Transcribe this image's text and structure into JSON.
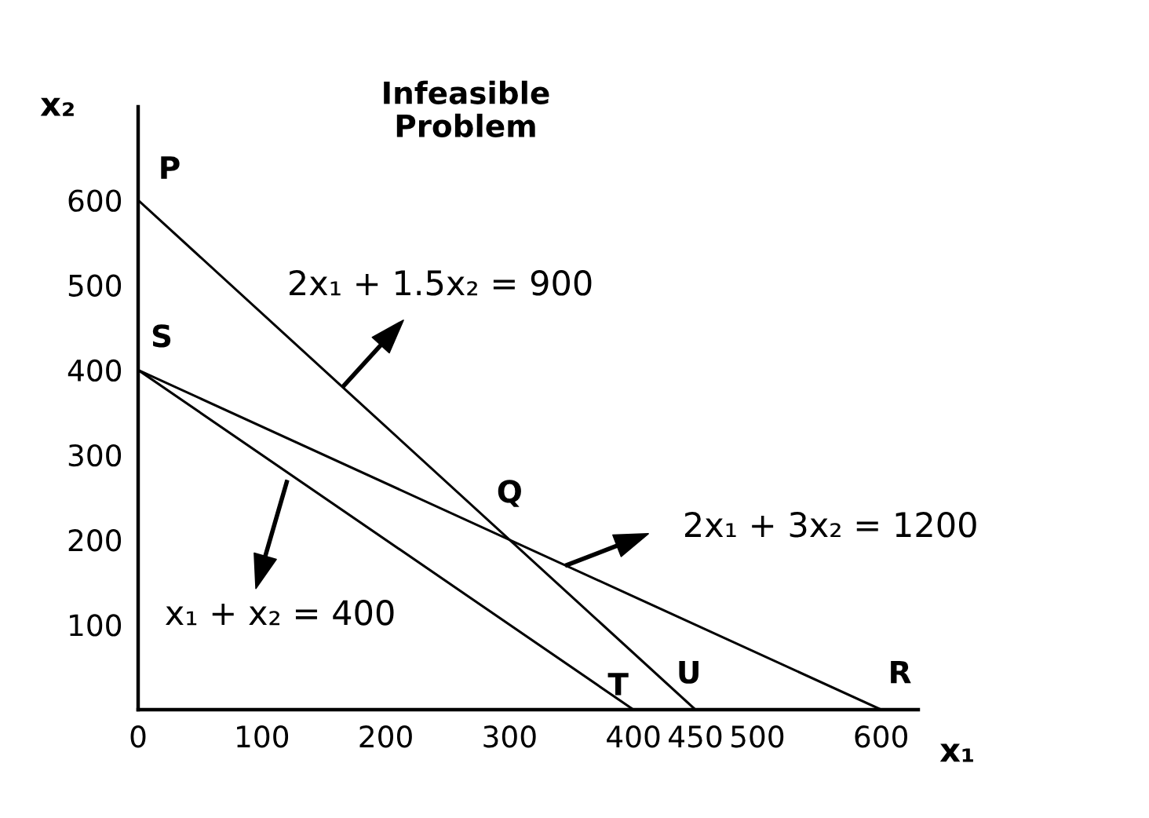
{
  "chart_data": {
    "type": "line",
    "title": "Infeasible\nProblem",
    "xlabel": "x₁",
    "ylabel": "x₂",
    "series": [
      {
        "x": [
          0,
          450
        ],
        "values": [
          600,
          0
        ],
        "color": "#000000"
      },
      {
        "x": [
          0,
          600
        ],
        "values": [
          400,
          0
        ],
        "color": "#000000"
      },
      {
        "x": [
          0,
          400
        ],
        "values": [
          400,
          0
        ],
        "color": "#000000"
      }
    ],
    "xlim": [
      0,
      630
    ],
    "ylim": [
      0,
      710
    ],
    "xticks": [
      0,
      100,
      200,
      300,
      400,
      450,
      500,
      600
    ],
    "yticks": [
      100,
      200,
      300,
      400,
      500,
      600
    ],
    "line_style": "solid",
    "annotations": [
      "2x₁ + 1.5x₂ = 900",
      "2x₁ + 3x₂ = 1200",
      "x₁ + x₂ = 400",
      {
        "text": "P",
        "x": 0,
        "y": 600
      },
      {
        "text": "S",
        "x": 0,
        "y": 400
      },
      {
        "text": "Q",
        "x": 300,
        "y": 200
      },
      {
        "text": "T",
        "x": 400,
        "y": 0
      },
      {
        "text": "U",
        "x": 450,
        "y": 0
      },
      {
        "text": "R",
        "x": 600,
        "y": 0
      }
    ]
  }
}
